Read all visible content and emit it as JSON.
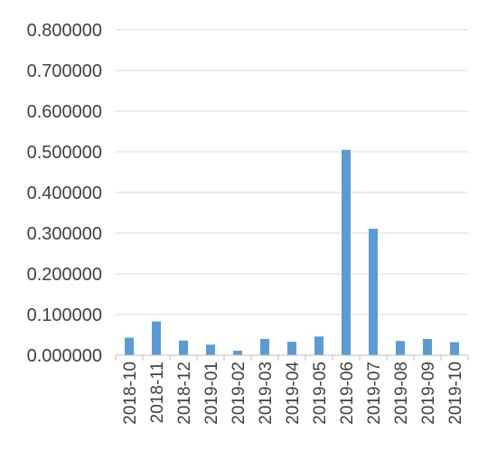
{
  "chart_data": {
    "type": "bar",
    "title": "",
    "xlabel": "",
    "ylabel": "",
    "categories": [
      "2018-10",
      "2018-11",
      "2018-12",
      "2019-01",
      "2019-02",
      "2019-03",
      "2019-04",
      "2019-05",
      "2019-06",
      "2019-07",
      "2019-08",
      "2019-09",
      "2019-10"
    ],
    "values": [
      0.043,
      0.083,
      0.036,
      0.026,
      0.011,
      0.04,
      0.033,
      0.046,
      0.505,
      0.311,
      0.035,
      0.04,
      0.032
    ],
    "ylim": [
      0,
      0.8
    ],
    "yticks": [
      "0.000000",
      "0.100000",
      "0.200000",
      "0.300000",
      "0.400000",
      "0.500000",
      "0.600000",
      "0.700000",
      "0.800000"
    ],
    "grid": true,
    "legend": "none",
    "colors": {
      "bar": "#5B9BD5",
      "grid": "#D9D9D9",
      "axis": "#BFBFBF",
      "text": "#404040"
    }
  }
}
